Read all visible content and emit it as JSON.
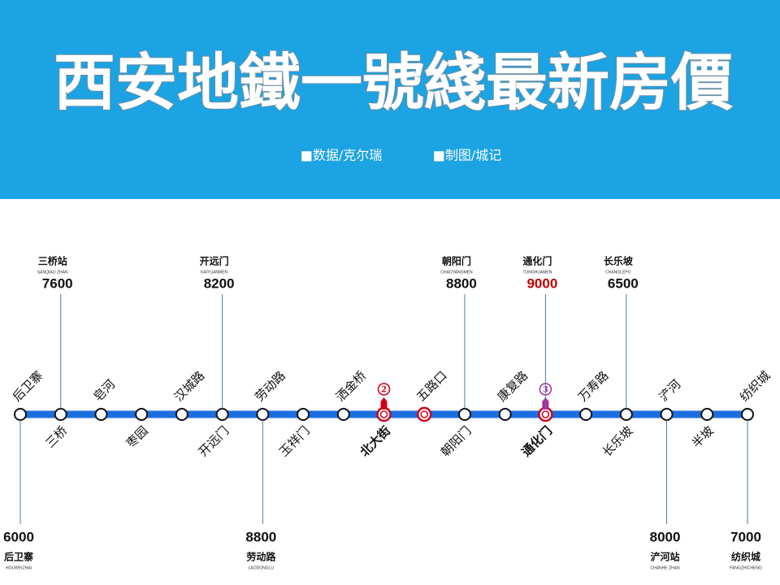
{
  "header": {
    "title": "西安地鐵一號綫最新房價",
    "credits": [
      "■数据/克尔瑞",
      "■制图/城记"
    ]
  },
  "stations": [
    {
      "name": "后卫寨"
    },
    {
      "name": "三桥"
    },
    {
      "name": "皂河"
    },
    {
      "name": "枣园"
    },
    {
      "name": "汉城路"
    },
    {
      "name": "开远门"
    },
    {
      "name": "劳动路"
    },
    {
      "name": "玉祥门"
    },
    {
      "name": "洒金桥"
    },
    {
      "name": "北大街",
      "interchange": true,
      "line": "2"
    },
    {
      "name": "五路口",
      "interchange": true
    },
    {
      "name": "朝阳门"
    },
    {
      "name": "康复路"
    },
    {
      "name": "通化门",
      "interchange": true,
      "line": "3"
    },
    {
      "name": "万寿路"
    },
    {
      "name": "长乐坡"
    },
    {
      "name": "浐河"
    },
    {
      "name": "半坡"
    },
    {
      "name": "纺织城"
    }
  ],
  "top_callouts": [
    {
      "station": "三桥",
      "name": "三桥站",
      "pinyin": "SANQIAO ZHAN",
      "price": "7600"
    },
    {
      "station": "开远门",
      "name": "开远门",
      "pinyin": "KAIYUANMEN",
      "price": "8200"
    },
    {
      "station": "朝阳门",
      "name": "朝阳门",
      "pinyin": "CHAOYANGMEN",
      "price": "8800"
    },
    {
      "station": "通化门",
      "name": "通化门",
      "pinyin": "TONGHUAMEN",
      "price": "9000",
      "highlight": true
    },
    {
      "station": "长乐坡",
      "name": "长乐坡",
      "pinyin": "CHANGLEPO",
      "price": "6500"
    }
  ],
  "bottom_callouts": [
    {
      "station": "后卫寨",
      "name": "后卫寨",
      "pinyin": "HOUWEIZHAI",
      "price": "6000"
    },
    {
      "station": "劳动路",
      "name": "劳动路",
      "pinyin": "LAODONGLU",
      "price": "8800"
    },
    {
      "station": "浐河",
      "name": "浐河站",
      "pinyin": "CHANHE ZHAN",
      "price": "8000"
    },
    {
      "station": "纺织城",
      "name": "纺织城",
      "pinyin": "FANGZHICHENG",
      "price": "7000"
    }
  ]
}
